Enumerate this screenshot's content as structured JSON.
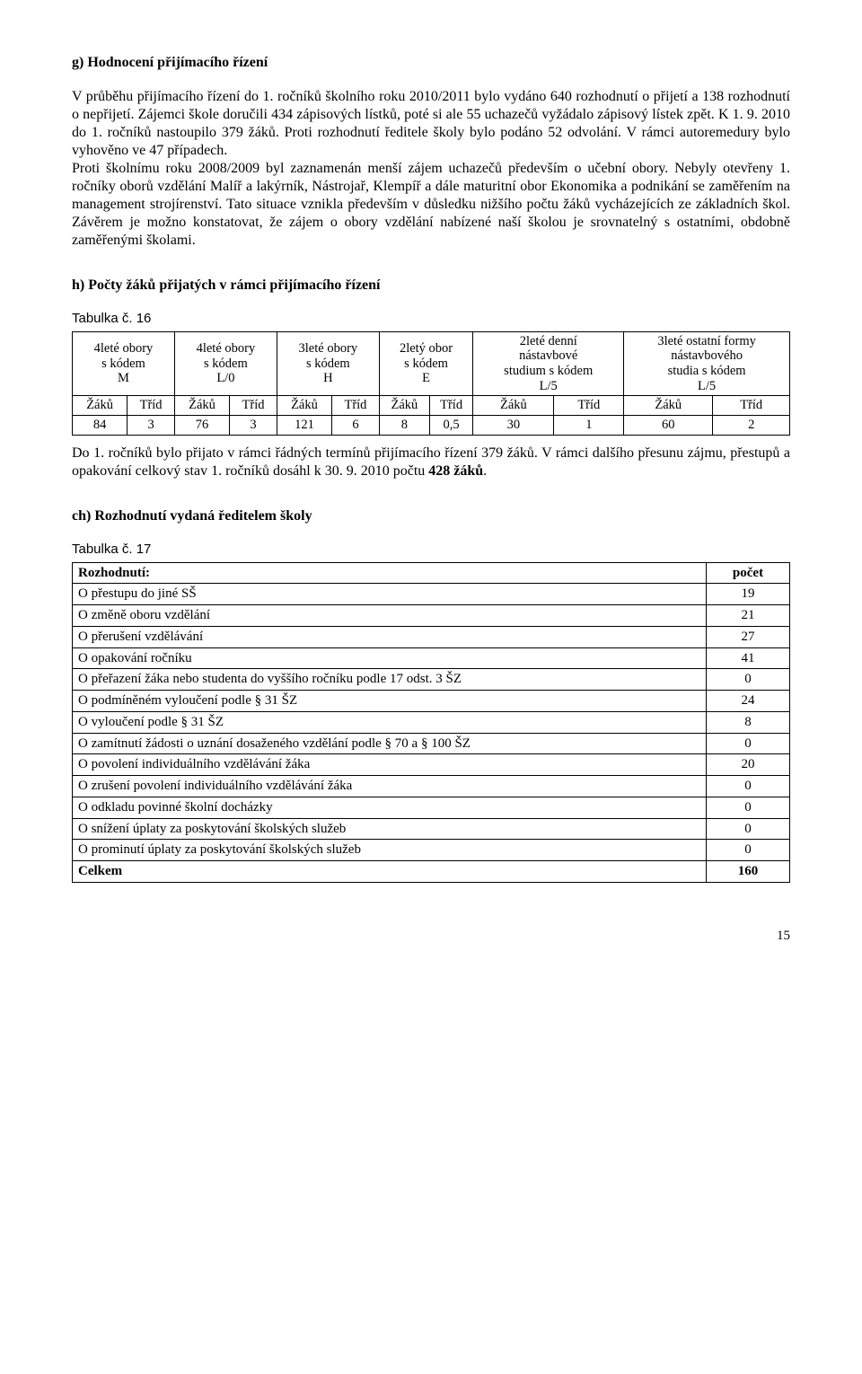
{
  "sectionG": {
    "heading": "g) Hodnocení přijímacího řízení",
    "body": "V průběhu přijímacího řízení do 1. ročníků školního roku 2010/2011 bylo vydáno 640 rozhodnutí o přijetí a 138 rozhodnutí o nepřijetí. Zájemci škole doručili 434 zápisových lístků, poté si ale 55 uchazečů vyžádalo zápisový lístek zpět. K 1. 9. 2010 do 1. ročníků nastoupilo 379 žáků. Proti rozhodnutí ředitele školy bylo podáno 52 odvolání. V rámci autoremedury bylo vyhověno ve 47 případech.\nProti školnímu roku 2008/2009 byl zaznamenán menší zájem uchazečů především o učební obory. Nebyly otevřeny 1. ročníky oborů vzdělání Malíř a lakýrník, Nástrojař, Klempíř a dále maturitní obor Ekonomika a podnikání se zaměřením na management strojírenství. Tato situace vznikla především v důsledku nižšího počtu žáků vycházejících ze základních škol. Závěrem je možno konstatovat, že zájem o obory vzdělání nabízené naší školou je srovnatelný s ostatními, obdobně zaměřenými školami."
  },
  "sectionH": {
    "heading": "h) Počty žáků přijatých v rámci přijímacího řízení",
    "tableLabel": "Tabulka č. 16",
    "cols": [
      "4leté obory\ns kódem\nM",
      "4leté obory\ns kódem\nL/0",
      "3leté obory\ns kódem\nH",
      "2letý obor\ns kódem\nE",
      "2leté denní\nnástavbové\nstudium s kódem\nL/5",
      "3leté ostatní formy\nnástavbového\nstudia s kódem\nL/5"
    ],
    "sub": [
      "Žáků",
      "Tříd",
      "Žáků",
      "Tříd",
      "Žáků",
      "Tříd",
      "Žáků",
      "Tříd",
      "Žáků",
      "Tříd",
      "Žáků",
      "Tříd"
    ],
    "row": [
      "84",
      "3",
      "76",
      "3",
      "121",
      "6",
      "8",
      "0,5",
      "30",
      "1",
      "60",
      "2"
    ],
    "after": "Do 1. ročníků bylo přijato v rámci řádných termínů přijímacího řízení 379 žáků. V rámci dalšího přesunu zájmu, přestupů a opakování celkový stav 1. ročníků dosáhl k 30. 9. 2010 počtu ",
    "after_bold": "428 žáků",
    "after_tail": "."
  },
  "sectionCh": {
    "heading": "ch) Rozhodnutí vydaná ředitelem školy",
    "tableLabel": "Tabulka č. 17",
    "head": [
      "Rozhodnutí:",
      "počet"
    ],
    "rows": [
      [
        "O přestupu do jiné SŠ",
        "19"
      ],
      [
        "O změně oboru vzdělání",
        "21"
      ],
      [
        "O přerušení vzdělávání",
        "27"
      ],
      [
        "O opakování ročníku",
        "41"
      ],
      [
        "O přeřazení žáka nebo studenta do vyššího ročníku podle 17 odst. 3 ŠZ",
        "0"
      ],
      [
        "O podmíněném vyloučení podle § 31 ŠZ",
        "24"
      ],
      [
        "O vyloučení podle § 31 ŠZ",
        "8"
      ],
      [
        "O zamítnutí žádosti o uznání dosaženého vzdělání podle § 70 a § 100 ŠZ",
        "0"
      ],
      [
        "O povolení individuálního vzdělávání žáka",
        "20"
      ],
      [
        "O zrušení povolení individuálního vzdělávání žáka",
        "0"
      ],
      [
        "O odkladu povinné školní docházky",
        "0"
      ],
      [
        "O snížení úplaty za poskytování školských služeb",
        "0"
      ],
      [
        "O prominutí úplaty za poskytování školských služeb",
        "0"
      ]
    ],
    "total": [
      "Celkem",
      "160"
    ]
  },
  "pageNum": "15"
}
